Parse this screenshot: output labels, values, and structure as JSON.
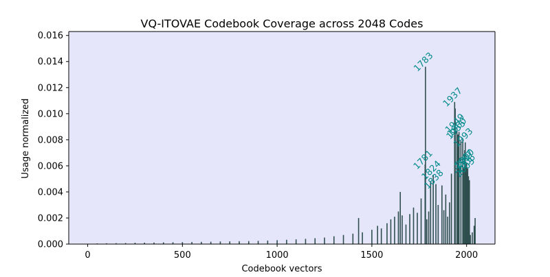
{
  "colors": {
    "plot_background": "#e6e6fa",
    "bar": "#2f4f4f",
    "annotation": "#008b8b",
    "axis": "#000000"
  },
  "chart_data": {
    "type": "bar",
    "title": "VQ-ITOVAE Codebook Coverage across 2048 Codes",
    "xlabel": "Codebook vectors",
    "ylabel": "Usage normalized",
    "xlim": [
      -100,
      2150
    ],
    "ylim": [
      0,
      0.0163
    ],
    "x_ticks": [
      0,
      500,
      1000,
      1500,
      2000
    ],
    "x_tick_labels": [
      "0",
      "500",
      "1000",
      "1500",
      "2000"
    ],
    "y_ticks": [
      0,
      0.002,
      0.004,
      0.006,
      0.008,
      0.01,
      0.012,
      0.014,
      0.016
    ],
    "y_tick_labels": [
      "0.000",
      "0.002",
      "0.004",
      "0.006",
      "0.008",
      "0.010",
      "0.012",
      "0.014",
      "0.016"
    ],
    "grid": false,
    "x": [
      0,
      50,
      100,
      150,
      200,
      250,
      300,
      350,
      400,
      450,
      500,
      550,
      600,
      650,
      700,
      750,
      800,
      850,
      900,
      950,
      1000,
      1050,
      1100,
      1150,
      1200,
      1250,
      1300,
      1350,
      1400,
      1430,
      1450,
      1500,
      1530,
      1550,
      1580,
      1600,
      1620,
      1640,
      1650,
      1660,
      1680,
      1700,
      1720,
      1740,
      1760,
      1781,
      1783,
      1790,
      1800,
      1810,
      1824,
      1838,
      1850,
      1870,
      1880,
      1890,
      1900,
      1910,
      1920,
      1937,
      1940,
      1949,
      1955,
      1960,
      1970,
      1980,
      1985,
      1990,
      1993,
      1997,
      2000,
      2003,
      2006,
      2010,
      2015,
      2020,
      2030,
      2040,
      2045
    ],
    "values": [
      2e-05,
      5e-05,
      6e-05,
      7e-05,
      8e-05,
      0.0001,
      0.00011,
      0.00012,
      0.00013,
      0.00014,
      0.00015,
      0.00016,
      0.00017,
      0.00018,
      0.0002,
      0.00021,
      0.00022,
      0.00023,
      0.00025,
      0.00027,
      0.0003,
      0.00033,
      0.00036,
      0.0004,
      0.00045,
      0.0005,
      0.0006,
      0.0007,
      0.0008,
      0.002,
      0.0009,
      0.0011,
      0.0014,
      0.0012,
      0.0016,
      0.0019,
      0.0021,
      0.0025,
      0.004,
      0.0022,
      0.0015,
      0.0023,
      0.0028,
      0.0024,
      0.0035,
      0.0061,
      0.0136,
      0.0019,
      0.0025,
      0.0048,
      0.0053,
      0.0046,
      0.003,
      0.0045,
      0.0026,
      0.0038,
      0.0021,
      0.0032,
      0.0054,
      0.0109,
      0.0104,
      0.0089,
      0.0084,
      0.0086,
      0.0079,
      0.0081,
      0.0058,
      0.0072,
      0.0078,
      0.0061,
      0.0062,
      0.0055,
      0.0058,
      0.0052,
      0.0049,
      0.0007,
      0.0009,
      0.0014,
      0.002
    ],
    "annotations": [
      {
        "label": "1783",
        "x": 1783,
        "y": 0.0136
      },
      {
        "label": "1937",
        "x": 1937,
        "y": 0.0109
      },
      {
        "label": "1949",
        "x": 1949,
        "y": 0.0089
      },
      {
        "label": "1955",
        "x": 1955,
        "y": 0.0084
      },
      {
        "label": "1960",
        "x": 1960,
        "y": 0.0086
      },
      {
        "label": "1993",
        "x": 1993,
        "y": 0.0078
      },
      {
        "label": "1781",
        "x": 1781,
        "y": 0.0061
      },
      {
        "label": "1824",
        "x": 1824,
        "y": 0.0053
      },
      {
        "label": "1838",
        "x": 1838,
        "y": 0.0046
      },
      {
        "label": "1997",
        "x": 1997,
        "y": 0.0061
      },
      {
        "label": "2000",
        "x": 2000,
        "y": 0.0062
      },
      {
        "label": "2003",
        "x": 2003,
        "y": 0.0055
      },
      {
        "label": "2006",
        "x": 2006,
        "y": 0.0058
      }
    ]
  }
}
